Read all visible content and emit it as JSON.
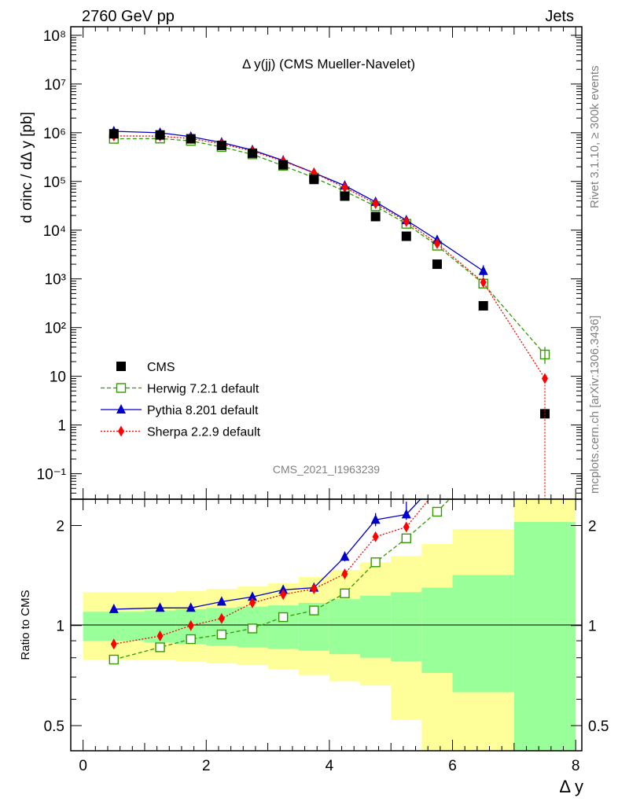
{
  "header": {
    "left": "2760 GeV pp",
    "right": "Jets"
  },
  "side_text": {
    "top": "Rivet 3.1.10, ≥ 300k events",
    "bottom": "mcplots.cern.ch [arXiv:1306.3436]"
  },
  "watermark": "CMS_2021_I1963239",
  "chart_data": [
    {
      "type": "scatter",
      "title": "Δ y(jj) (CMS Mueller-Navelet)",
      "ylabel": "d σinc / dΔ y [pb]",
      "xlabel": "Δ y",
      "xlim": [
        -0.2,
        8.1
      ],
      "ylim": [
        0.03,
        150000000
      ],
      "yscale": "log",
      "ytick_labels": [
        "10⁻¹",
        "1",
        "10",
        "10²",
        "10³",
        "10⁴",
        "10⁵",
        "10⁶",
        "10⁷",
        "10⁸"
      ],
      "ytick_values": [
        0.1,
        1,
        10,
        100,
        1000,
        10000,
        100000,
        1000000,
        10000000,
        100000000
      ],
      "legend": [
        "CMS",
        "Herwig 7.2.1 default",
        "Pythia 8.201 default",
        "Sherpa 2.2.9 default"
      ],
      "legend_placement": "bottom-left",
      "series": [
        {
          "name": "CMS",
          "color": "#000000",
          "marker": "square",
          "x": [
            0.5,
            1.25,
            1.75,
            2.25,
            2.75,
            3.25,
            3.75,
            4.25,
            4.75,
            5.25,
            5.75,
            6.5,
            7.5
          ],
          "y": [
            950000,
            900000,
            750000,
            550000,
            380000,
            220000,
            110000,
            50000,
            19000,
            7500,
            2000,
            280,
            1.7
          ]
        },
        {
          "name": "Herwig 7.2.1 default",
          "color": "#339900",
          "marker": "open-square",
          "dash": "5,3",
          "x": [
            0.5,
            1.25,
            1.75,
            2.25,
            2.75,
            3.25,
            3.75,
            4.25,
            4.75,
            5.25,
            5.75,
            6.5,
            7.5
          ],
          "y": [
            750000,
            760000,
            680000,
            510000,
            360000,
            210000,
            120000,
            63000,
            31000,
            13500,
            4800,
            800,
            28
          ]
        },
        {
          "name": "Pythia 8.201 default",
          "color": "#0000cc",
          "marker": "triangle",
          "x": [
            0.5,
            1.25,
            1.75,
            2.25,
            2.75,
            3.25,
            3.75,
            4.25,
            4.75,
            5.25,
            5.75,
            6.5
          ],
          "y": [
            1070000,
            1000000,
            830000,
            630000,
            440000,
            270000,
            150000,
            82000,
            38000,
            16000,
            6300,
            1450
          ]
        },
        {
          "name": "Sherpa 2.2.9 default",
          "color": "#ff0000",
          "marker": "diamond",
          "dash": "2,2",
          "x": [
            0.5,
            1.25,
            1.75,
            2.25,
            2.75,
            3.25,
            3.75,
            4.25,
            4.75,
            5.25,
            5.75,
            6.5,
            7.5
          ],
          "y": [
            860000,
            850000,
            760000,
            590000,
            420000,
            260000,
            150000,
            75000,
            35000,
            15000,
            5300,
            850,
            9
          ]
        }
      ]
    },
    {
      "type": "scatter",
      "ylabel": "Ratio to CMS",
      "xlabel": "Δ y",
      "xlim": [
        -0.2,
        8.1
      ],
      "ylim": [
        0.42,
        2.4
      ],
      "yscale": "log",
      "ytick_labels": [
        "0.5",
        "1",
        "2"
      ],
      "ytick_values": [
        0.5,
        1,
        2
      ],
      "xtick_labels": [
        "0",
        "2",
        "4",
        "6",
        "8"
      ],
      "xtick_values": [
        0,
        2,
        4,
        6,
        8
      ],
      "bands": {
        "edges": [
          0,
          1,
          1.5,
          2,
          2.5,
          3,
          3.5,
          4,
          4.5,
          5,
          5.5,
          6,
          7,
          8
        ],
        "inner_color": "#99ff99",
        "outer_color": "#ffff99",
        "inner_lo": [
          0.9,
          0.89,
          0.88,
          0.87,
          0.86,
          0.85,
          0.84,
          0.82,
          0.8,
          0.78,
          0.72,
          0.63,
          0.01
        ],
        "inner_hi": [
          1.1,
          1.11,
          1.12,
          1.13,
          1.14,
          1.15,
          1.17,
          1.2,
          1.23,
          1.26,
          1.3,
          1.42,
          2.05
        ],
        "outer_lo": [
          0.79,
          0.79,
          0.78,
          0.77,
          0.76,
          0.74,
          0.71,
          0.68,
          0.66,
          0.52,
          0.38,
          0.38,
          0.01
        ],
        "outer_hi": [
          1.26,
          1.26,
          1.27,
          1.29,
          1.31,
          1.34,
          1.4,
          1.47,
          1.55,
          1.62,
          1.76,
          1.95,
          3.0
        ]
      },
      "series": [
        {
          "name": "Herwig 7.2.1 default",
          "color": "#339900",
          "marker": "open-square",
          "dash": "5,3",
          "x": [
            0.5,
            1.25,
            1.75,
            2.25,
            2.75,
            3.25,
            3.75,
            4.25,
            4.75,
            5.25,
            5.75,
            5.95
          ],
          "y": [
            0.79,
            0.86,
            0.91,
            0.94,
            0.98,
            1.06,
            1.11,
            1.25,
            1.55,
            1.83,
            2.2,
            2.4
          ]
        },
        {
          "name": "Pythia 8.201 default",
          "color": "#0000cc",
          "marker": "triangle",
          "x": [
            0.5,
            1.25,
            1.75,
            2.25,
            2.75,
            3.25,
            3.75,
            4.25,
            4.75,
            5.25,
            5.48
          ],
          "y": [
            1.12,
            1.13,
            1.13,
            1.18,
            1.22,
            1.28,
            1.3,
            1.61,
            2.08,
            2.16,
            2.4
          ]
        },
        {
          "name": "Sherpa 2.2.9 default",
          "color": "#ff0000",
          "marker": "diamond",
          "dash": "2,2",
          "x": [
            0.5,
            1.25,
            1.75,
            2.25,
            2.75,
            3.25,
            3.75,
            4.25,
            4.75,
            5.25,
            5.62
          ],
          "y": [
            0.88,
            0.93,
            1.0,
            1.05,
            1.17,
            1.24,
            1.29,
            1.43,
            1.85,
            1.98,
            2.4
          ]
        }
      ]
    }
  ]
}
